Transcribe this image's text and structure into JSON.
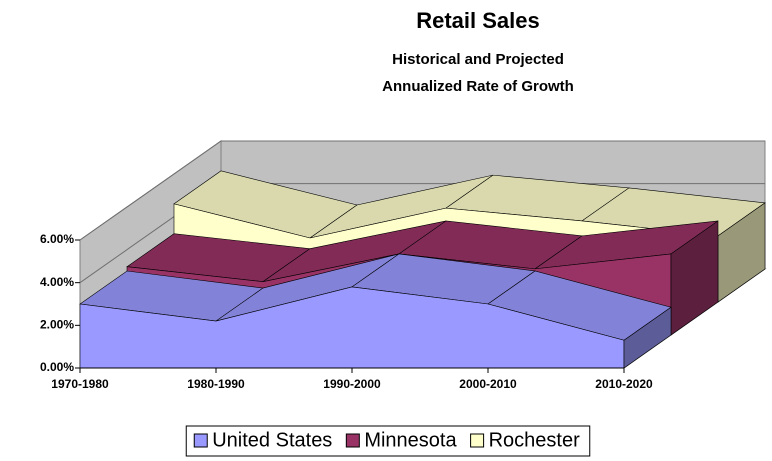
{
  "chart_data": {
    "type": "area3d",
    "title": "Retail Sales",
    "subtitle": [
      "Historical and Projected",
      "Annualized Rate of Growth"
    ],
    "categories": [
      "1970-1980",
      "1980-1990",
      "1990-2000",
      "2000-2010",
      "2010-2020"
    ],
    "series": [
      {
        "name": "United States",
        "color": "#9999ff",
        "values": [
          3.0,
          2.2,
          3.8,
          3.0,
          1.3
        ]
      },
      {
        "name": "Minnesota",
        "color": "#993366",
        "values": [
          3.2,
          2.5,
          3.8,
          3.1,
          3.8
        ]
      },
      {
        "name": "Rochester",
        "color": "#ffffcc",
        "values": [
          4.6,
          3.0,
          4.4,
          3.8,
          3.1
        ]
      }
    ],
    "ylim": [
      0,
      6
    ],
    "yticks": [
      {
        "value": 0,
        "label": "0.00%"
      },
      {
        "value": 2,
        "label": "2.00%"
      },
      {
        "value": 4,
        "label": "4.00%"
      },
      {
        "value": 6,
        "label": "6.00%"
      }
    ],
    "grid": true,
    "legend": "bottom"
  }
}
